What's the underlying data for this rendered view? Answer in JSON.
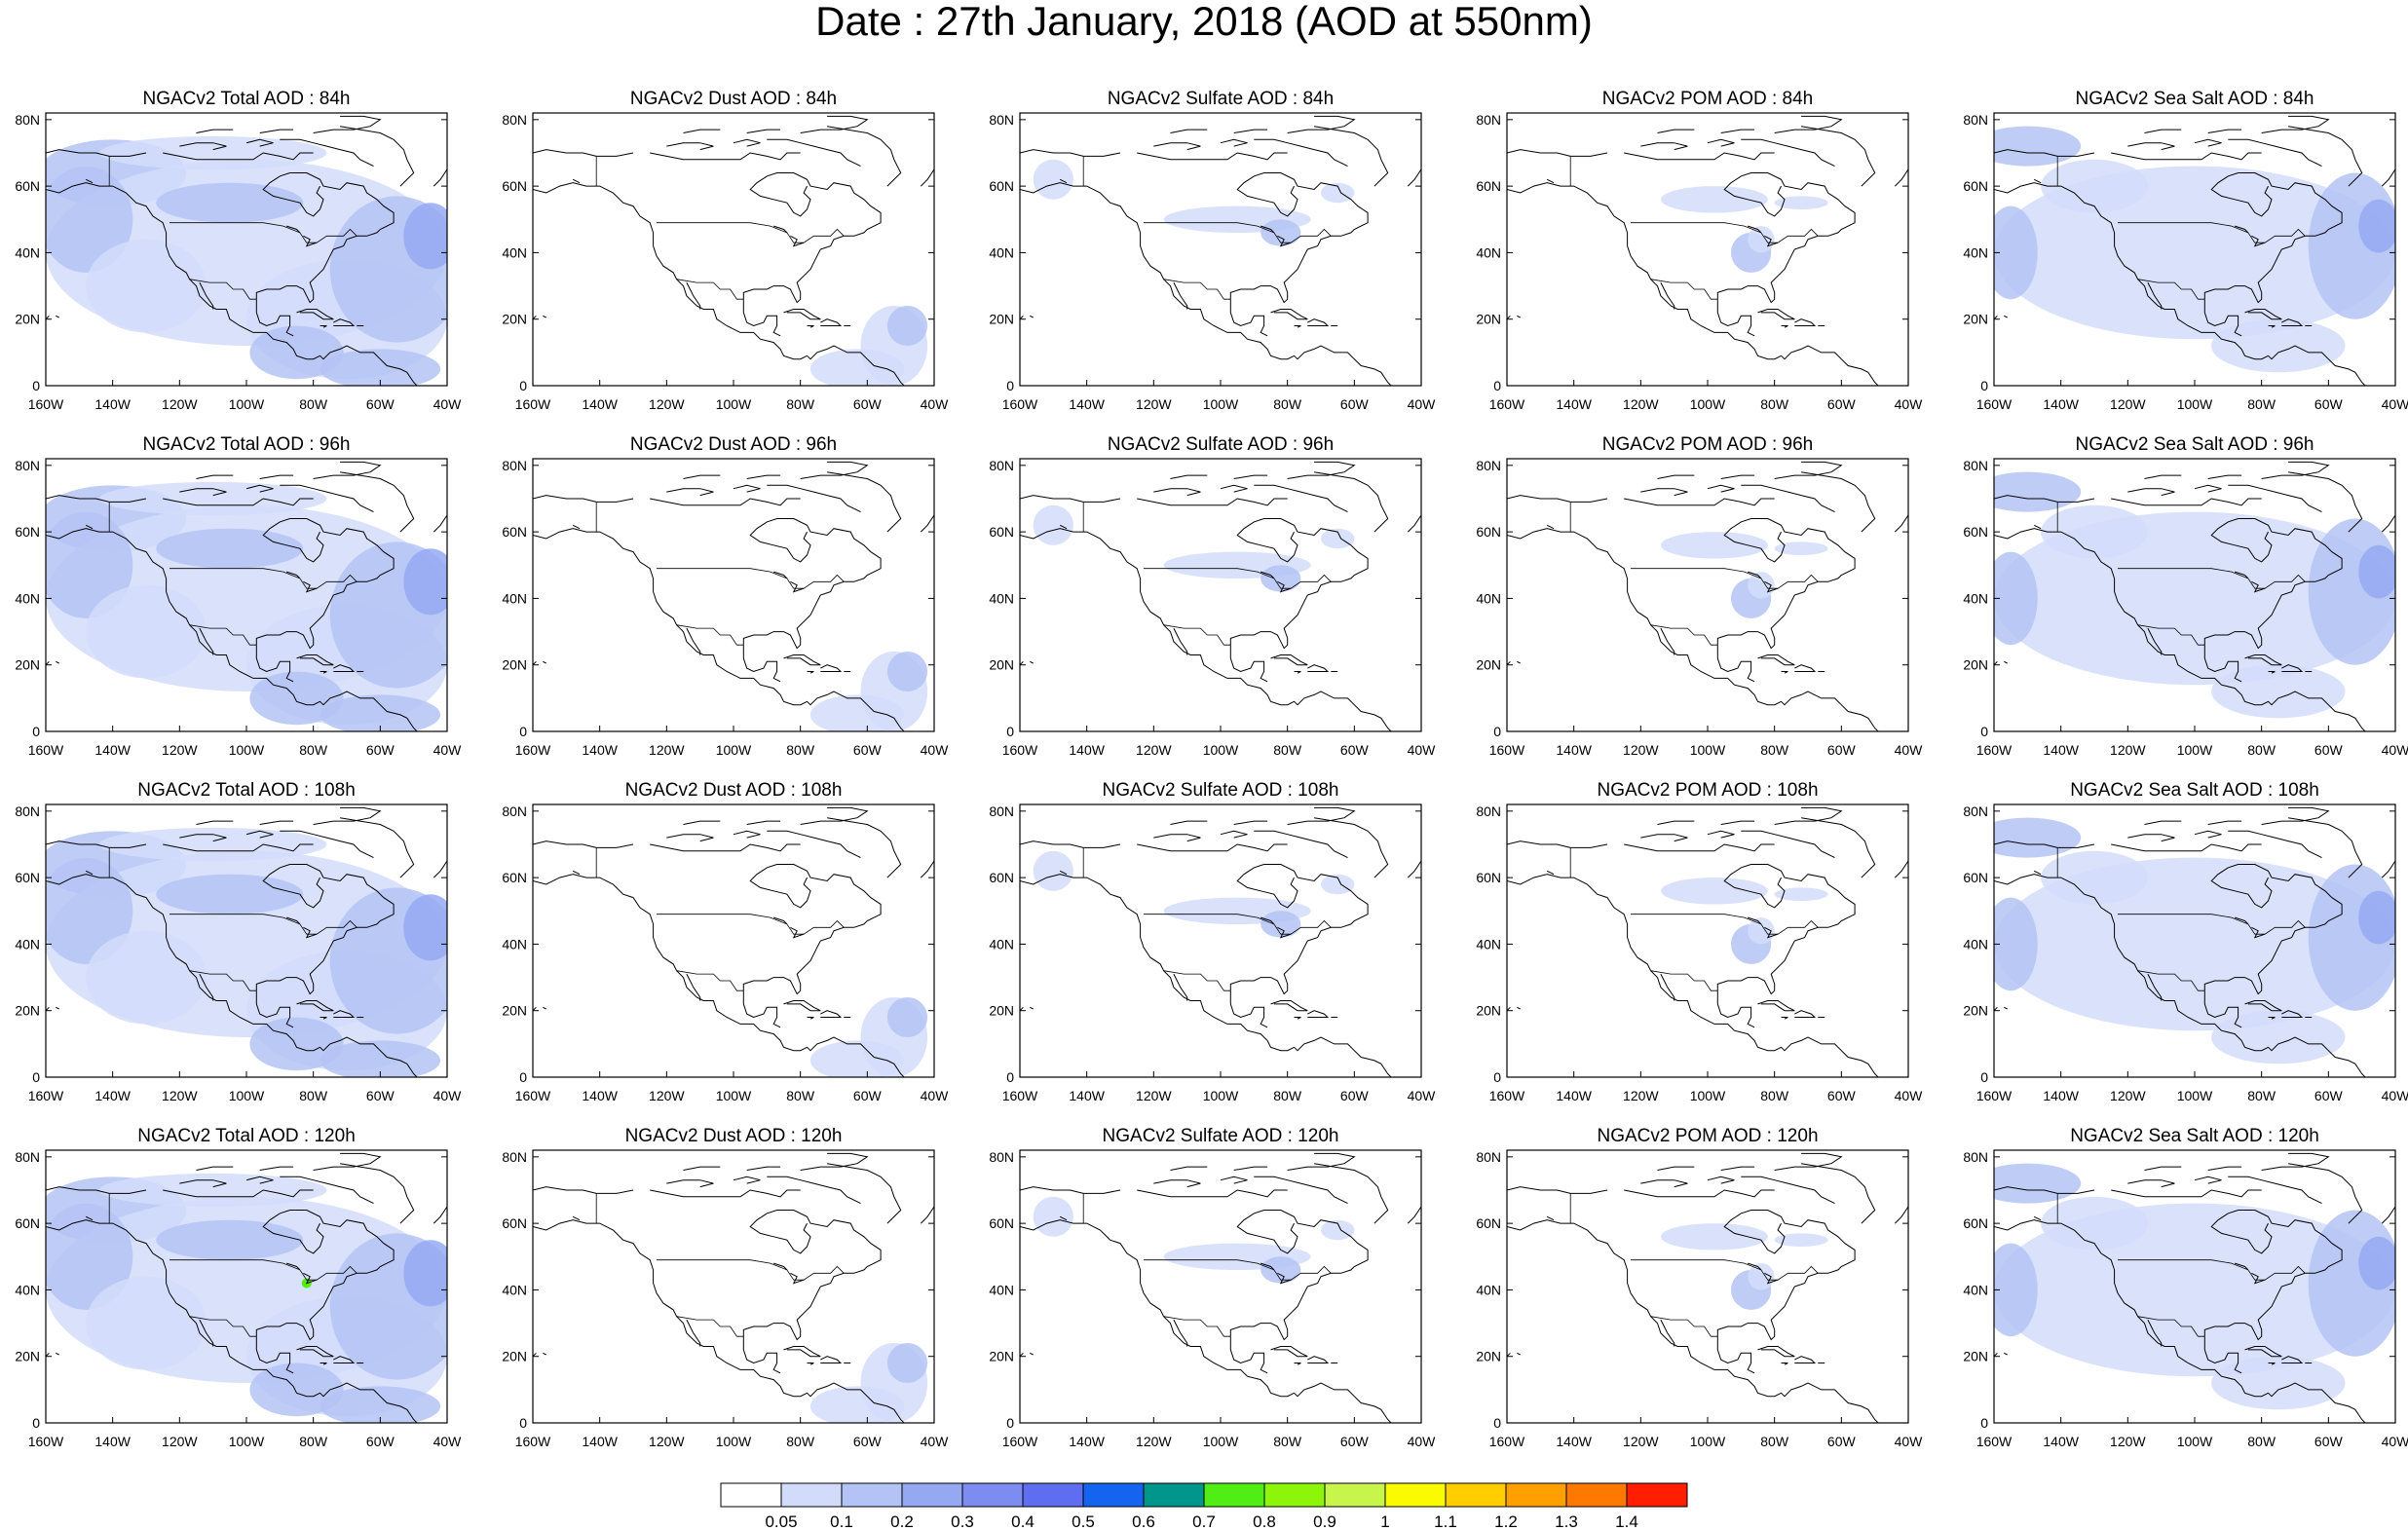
{
  "title": "Date : 27th January, 2018 (AOD at 550nm)",
  "map": {
    "lat_ticks": [
      "0",
      "20N",
      "40N",
      "60N",
      "80N"
    ],
    "lon_ticks": [
      "160W",
      "140W",
      "120W",
      "100W",
      "80W",
      "60W",
      "40W"
    ],
    "lat_values": [
      0,
      20,
      40,
      60,
      80
    ],
    "lon_values": [
      -160,
      -140,
      -120,
      -100,
      -80,
      -60,
      -40
    ],
    "lon_range": [
      -160,
      -40
    ],
    "lat_range": [
      0,
      82
    ]
  },
  "panels": [
    {
      "title": "NGACv2 Total AOD : 84h",
      "species": "total",
      "hour": 84
    },
    {
      "title": "NGACv2 Dust AOD : 84h",
      "species": "dust",
      "hour": 84
    },
    {
      "title": "NGACv2 Sulfate AOD : 84h",
      "species": "sulfate",
      "hour": 84
    },
    {
      "title": "NGACv2 POM AOD : 84h",
      "species": "pom",
      "hour": 84
    },
    {
      "title": "NGACv2 Sea Salt AOD : 84h",
      "species": "seasalt",
      "hour": 84
    },
    {
      "title": "NGACv2 Total AOD : 96h",
      "species": "total",
      "hour": 96
    },
    {
      "title": "NGACv2 Dust AOD : 96h",
      "species": "dust",
      "hour": 96
    },
    {
      "title": "NGACv2 Sulfate AOD : 96h",
      "species": "sulfate",
      "hour": 96
    },
    {
      "title": "NGACv2 POM AOD : 96h",
      "species": "pom",
      "hour": 96
    },
    {
      "title": "NGACv2 Sea Salt AOD : 96h",
      "species": "seasalt",
      "hour": 96
    },
    {
      "title": "NGACv2 Total AOD : 108h",
      "species": "total",
      "hour": 108
    },
    {
      "title": "NGACv2 Dust AOD : 108h",
      "species": "dust",
      "hour": 108
    },
    {
      "title": "NGACv2 Sulfate AOD : 108h",
      "species": "sulfate",
      "hour": 108
    },
    {
      "title": "NGACv2 POM AOD : 108h",
      "species": "pom",
      "hour": 108
    },
    {
      "title": "NGACv2 Sea Salt AOD : 108h",
      "species": "seasalt",
      "hour": 108
    },
    {
      "title": "NGACv2 Total AOD : 120h",
      "species": "total",
      "hour": 120
    },
    {
      "title": "NGACv2 Dust AOD : 120h",
      "species": "dust",
      "hour": 120
    },
    {
      "title": "NGACv2 Sulfate AOD : 120h",
      "species": "sulfate",
      "hour": 120
    },
    {
      "title": "NGACv2 POM AOD : 120h",
      "species": "pom",
      "hour": 120
    },
    {
      "title": "NGACv2 Sea Salt  AOD : 120h",
      "species": "seasalt",
      "hour": 120
    }
  ],
  "colorbar": {
    "colors": [
      "#ffffff",
      "#d2dcfa",
      "#b4c3f5",
      "#95a9f2",
      "#7c8cf0",
      "#5f6ef0",
      "#1464f0",
      "#00968c",
      "#50ee14",
      "#8cf50a",
      "#c8f54b",
      "#fafa00",
      "#ffcd00",
      "#ffa000",
      "#ff7800",
      "#ff1e00"
    ],
    "labels": [
      "0.05",
      "0.1",
      "0.2",
      "0.3",
      "0.4",
      "0.5",
      "0.6",
      "0.7",
      "0.8",
      "0.9",
      "1",
      "1.1",
      "1.2",
      "1.3",
      "1.4"
    ]
  },
  "colors": {
    "coastline": "#000000",
    "aod_light": "#d2dcfa",
    "aod_mid": "#b4c3f5",
    "aod_high": "#95a9f2",
    "aod_peak": "#7c8cf0",
    "aod_green": "#50ee14"
  }
}
